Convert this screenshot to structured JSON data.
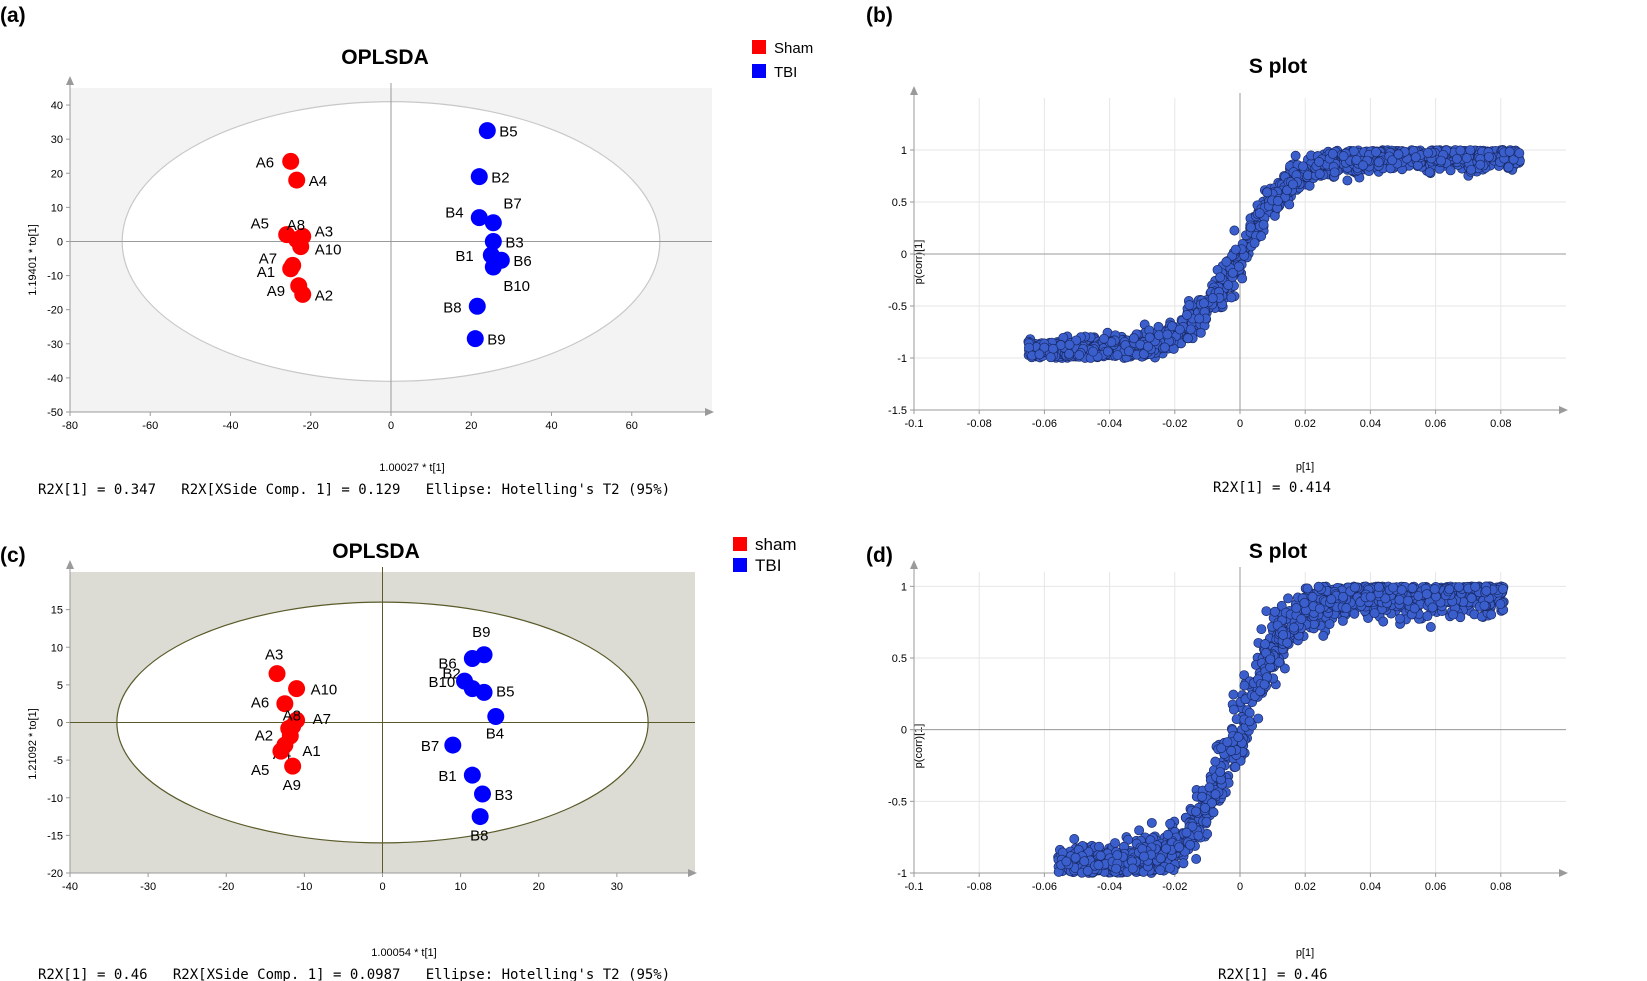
{
  "panels": {
    "a": {
      "label": "(a)",
      "title": "OPLSDA",
      "xlabel": "1.00027 * t[1]",
      "ylabel": "1.19401 * to[1]",
      "footer": "R2X[1] = 0.347   R2X[XSide Comp. 1] = 0.129   Ellipse: Hotelling's T2 (95%)"
    },
    "b": {
      "label": "(b)",
      "title": "S plot",
      "xlabel": "p[1]",
      "ylabel": "p(corr)[1]",
      "footer": "R2X[1] = 0.414"
    },
    "c": {
      "label": "(c)",
      "title": "OPLSDA",
      "xlabel": "1.00054 * t[1]",
      "ylabel": "1.21092 * to[1]",
      "footer": "R2X[1] = 0.46   R2X[XSide Comp. 1] = 0.0987   Ellipse: Hotelling's T2 (95%)"
    },
    "d": {
      "label": "(d)",
      "title": "S plot",
      "xlabel": "p[1]",
      "ylabel": "p(corr)[1]",
      "footer": "R2X[1] = 0.46"
    }
  },
  "colors": {
    "sham": "#ff0000",
    "tbi": "#0000ff",
    "splot_point": "#3a5fcd",
    "splot_edge": "#1a2a66",
    "plot_bg_a": "#f3f3f3",
    "plot_bg_c": "#dcdcd4",
    "ellipse_a": "#c8c8c8",
    "ellipse_c": "#5a5a2a"
  },
  "chart_data": [
    {
      "panel": "a",
      "type": "scatter",
      "title": "OPLSDA",
      "xlabel": "1.00027 * t[1]",
      "ylabel": "1.19401 * to[1]",
      "xlim": [
        -80,
        80
      ],
      "ylim": [
        -50,
        45
      ],
      "xticks": [
        -80,
        -60,
        -40,
        -20,
        0,
        20,
        40,
        60
      ],
      "yticks": [
        -50,
        -40,
        -30,
        -20,
        -10,
        0,
        10,
        20,
        30,
        40
      ],
      "ellipse": {
        "rx": 67,
        "ry": 41
      },
      "legend": {
        "position": "top-right",
        "entries": [
          "Sham",
          "TBI"
        ]
      },
      "series": [
        {
          "name": "Sham",
          "points": [
            {
              "label": "A1",
              "x": -25,
              "y": -8
            },
            {
              "label": "A2",
              "x": -22,
              "y": -15.5
            },
            {
              "label": "A3",
              "x": -22,
              "y": 1.5
            },
            {
              "label": "A4",
              "x": -23.5,
              "y": 18
            },
            {
              "label": "A5",
              "x": -26,
              "y": 2
            },
            {
              "label": "A6",
              "x": -25,
              "y": 23.5
            },
            {
              "label": "A7",
              "x": -24.5,
              "y": -7
            },
            {
              "label": "A8",
              "x": -23.5,
              "y": 0.5
            },
            {
              "label": "A9",
              "x": -23,
              "y": -13
            },
            {
              "label": "A10",
              "x": -22.5,
              "y": -1.5
            }
          ]
        },
        {
          "name": "TBI",
          "points": [
            {
              "label": "B1",
              "x": 25,
              "y": -4
            },
            {
              "label": "B2",
              "x": 22,
              "y": 19
            },
            {
              "label": "B3",
              "x": 25.5,
              "y": 0
            },
            {
              "label": "B4",
              "x": 22,
              "y": 7
            },
            {
              "label": "B5",
              "x": 24,
              "y": 32.5
            },
            {
              "label": "B6",
              "x": 27.5,
              "y": -5.5
            },
            {
              "label": "B7",
              "x": 25.5,
              "y": 5.5
            },
            {
              "label": "B8",
              "x": 21.5,
              "y": -19
            },
            {
              "label": "B9",
              "x": 21,
              "y": -28.5
            },
            {
              "label": "B10",
              "x": 25.5,
              "y": -7.5
            }
          ]
        }
      ]
    },
    {
      "panel": "b",
      "type": "scatter",
      "title": "S plot",
      "xlabel": "p[1]",
      "ylabel": "p(corr)[1]",
      "xlim": [
        -0.1,
        0.1
      ],
      "ylim": [
        -1.5,
        1.5
      ],
      "xticks": [
        -0.1,
        -0.08,
        -0.06,
        -0.04,
        -0.02,
        0,
        0.02,
        0.04,
        0.06,
        0.08
      ],
      "yticks": [
        -1.5,
        -1,
        -0.5,
        0,
        0.5,
        1
      ],
      "cloud": {
        "n": 1400,
        "pmin": -0.065,
        "pmax": 0.086,
        "scale": 0.017,
        "spread": 0.12,
        "seed": 7
      }
    },
    {
      "panel": "c",
      "type": "scatter",
      "title": "OPLSDA",
      "xlabel": "1.00054 * t[1]",
      "ylabel": "1.21092 * to[1]",
      "xlim": [
        -40,
        40
      ],
      "ylim": [
        -20,
        20
      ],
      "xticks": [
        -40,
        -30,
        -20,
        -10,
        0,
        10,
        20,
        30
      ],
      "yticks": [
        -20,
        -15,
        -10,
        -5,
        0,
        5,
        10,
        15
      ],
      "ellipse": {
        "rx": 34,
        "ry": 16
      },
      "legend": {
        "position": "top-right",
        "entries": [
          "sham",
          "TBI"
        ]
      },
      "series": [
        {
          "name": "sham",
          "points": [
            {
              "label": "A1",
              "x": -11.8,
              "y": -1.8
            },
            {
              "label": "A2",
              "x": -12,
              "y": -0.8
            },
            {
              "label": "A3",
              "x": -13.5,
              "y": 6.5
            },
            {
              "label": "A4",
              "x": -12.5,
              "y": -3
            },
            {
              "label": "A5",
              "x": -13,
              "y": -3.8
            },
            {
              "label": "A6",
              "x": -12.5,
              "y": 2.5
            },
            {
              "label": "A7",
              "x": -11,
              "y": 0.3
            },
            {
              "label": "A8",
              "x": -11.5,
              "y": -0.5
            },
            {
              "label": "A9",
              "x": -11.5,
              "y": -5.8
            },
            {
              "label": "A10",
              "x": -11,
              "y": 4.5
            }
          ]
        },
        {
          "name": "TBI",
          "points": [
            {
              "label": "B1",
              "x": 11.5,
              "y": -7
            },
            {
              "label": "B2",
              "x": 11.5,
              "y": 4.5
            },
            {
              "label": "B3",
              "x": 12.8,
              "y": -9.5
            },
            {
              "label": "B4",
              "x": 14.5,
              "y": 0.8
            },
            {
              "label": "B5",
              "x": 13,
              "y": 4
            },
            {
              "label": "B6",
              "x": 11.5,
              "y": 8.5
            },
            {
              "label": "B7",
              "x": 9,
              "y": -3
            },
            {
              "label": "B8",
              "x": 12.5,
              "y": -12.5
            },
            {
              "label": "B9",
              "x": 13,
              "y": 9
            },
            {
              "label": "B10",
              "x": 10.5,
              "y": 5.5
            }
          ]
        }
      ]
    },
    {
      "panel": "d",
      "type": "scatter",
      "title": "S plot",
      "xlabel": "p[1]",
      "ylabel": "p(corr)[1]",
      "xlim": [
        -0.1,
        0.1
      ],
      "ylim": [
        -1,
        1.1
      ],
      "xticks": [
        -0.1,
        -0.08,
        -0.06,
        -0.04,
        -0.02,
        0,
        0.02,
        0.04,
        0.06,
        0.08
      ],
      "yticks": [
        -1,
        -0.5,
        0,
        0.5,
        1
      ],
      "cloud": {
        "n": 1400,
        "pmin": -0.056,
        "pmax": 0.081,
        "scale": 0.015,
        "spread": 0.14,
        "seed": 23
      }
    }
  ]
}
